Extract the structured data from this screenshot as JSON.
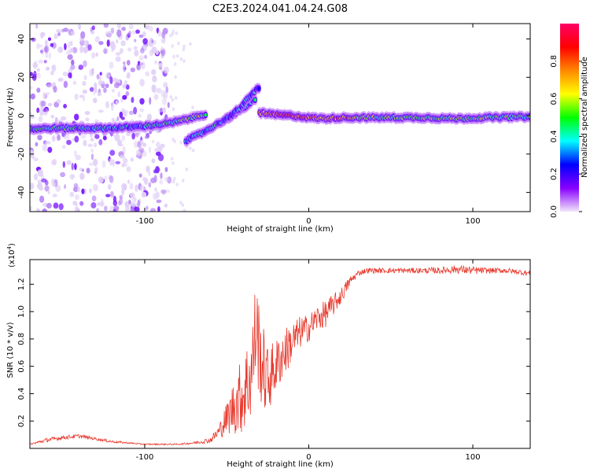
{
  "title": "C2E3.2024.041.04.24.G08",
  "chart_data": [
    {
      "type": "heatmap",
      "xlabel": "Height of straight line (km)",
      "ylabel": "Frequency (Hz)",
      "xlim": [
        -170,
        135
      ],
      "ylim": [
        -50,
        48
      ],
      "xticks": [
        -100,
        0,
        100
      ],
      "yticks": [
        -40,
        -20,
        0,
        20,
        40
      ],
      "colorbar": {
        "label": "Normalized spectral amplitude",
        "range": [
          0.0,
          1.0
        ],
        "ticks": [
          0.0,
          0.2,
          0.4,
          0.6,
          0.8
        ],
        "tick_labels": [
          "0.0",
          "0.2",
          "0.4",
          "0.6",
          "0.8"
        ],
        "colormap": [
          "#f2e6fa",
          "#8800ff",
          "#0000ff",
          "#00ffff",
          "#00ff00",
          "#ffff00",
          "#ff8800",
          "#ff0000",
          "#ff0066"
        ]
      },
      "noise_region_x": [
        -170,
        -85
      ],
      "traces": [
        {
          "x": [
            -170,
            -155,
            -140,
            -125,
            -110,
            -95,
            -85,
            -75,
            -62
          ],
          "y": [
            -7,
            -6.5,
            -6.5,
            -6.5,
            -6,
            -5,
            -4,
            -2,
            1
          ],
          "intensity": [
            0.35,
            0.45,
            0.4,
            0.35,
            0.35,
            0.4,
            0.45,
            0.5,
            0.55
          ]
        },
        {
          "x": [
            -75,
            -65,
            -55,
            -45,
            -38,
            -32
          ],
          "y": [
            -13,
            -9,
            -4,
            1,
            5,
            9
          ],
          "intensity": [
            0.35,
            0.35,
            0.35,
            0.35,
            0.35,
            0.35
          ]
        },
        {
          "x": [
            -52,
            -42,
            -35,
            -30
          ],
          "y": [
            -3,
            4,
            11,
            15
          ],
          "intensity": [
            0.3,
            0.3,
            0.3,
            0.3
          ]
        },
        {
          "x": [
            -30,
            -20,
            -10,
            0,
            10,
            20,
            30,
            50,
            70,
            90,
            110,
            135
          ],
          "y": [
            1.5,
            0.5,
            0,
            -1,
            -1.5,
            -1,
            -1,
            -1,
            -1,
            -1.5,
            -1,
            -0.5
          ],
          "intensity": [
            0.7,
            0.85,
            0.8,
            0.7,
            0.65,
            0.8,
            0.55,
            0.5,
            0.5,
            0.55,
            0.5,
            0.45
          ]
        }
      ]
    },
    {
      "type": "line",
      "xlabel": "Height of straight line (km)",
      "ylabel": "SNR (10 * v/v)",
      "scale_note": "(x10",
      "scale_exp": "4",
      "scale_close": ")",
      "xlim": [
        -170,
        135
      ],
      "ylim": [
        0,
        1.38
      ],
      "xticks": [
        -100,
        0,
        100
      ],
      "yticks": [
        0.2,
        0.4,
        0.6,
        0.8,
        1.0,
        1.2
      ],
      "ytick_labels": [
        "0.2",
        "0.4",
        "0.6",
        "0.8",
        "1.0",
        "1.2"
      ],
      "color": "#e83a2e",
      "series": [
        {
          "x": [
            -170,
            -160,
            -150,
            -140,
            -130,
            -120,
            -110,
            -100,
            -90,
            -80,
            -70,
            -60,
            -55,
            -50,
            -45,
            -40,
            -35,
            -32,
            -30,
            -27,
            -25,
            -20,
            -15,
            -10,
            -5,
            0,
            5,
            10,
            15,
            20,
            25,
            30,
            35,
            40,
            50,
            60,
            70,
            80,
            90,
            100,
            110,
            120,
            135
          ],
          "y": [
            0.03,
            0.06,
            0.08,
            0.09,
            0.07,
            0.05,
            0.04,
            0.03,
            0.03,
            0.03,
            0.04,
            0.06,
            0.12,
            0.22,
            0.32,
            0.4,
            0.55,
            0.9,
            0.7,
            0.55,
            0.5,
            0.6,
            0.7,
            0.78,
            0.85,
            0.88,
            0.95,
            0.98,
            1.05,
            1.12,
            1.22,
            1.28,
            1.3,
            1.3,
            1.3,
            1.3,
            1.3,
            1.3,
            1.31,
            1.3,
            1.3,
            1.3,
            1.28
          ],
          "noise": [
            0.005,
            0.015,
            0.015,
            0.015,
            0.01,
            0.01,
            0.005,
            0.005,
            0.005,
            0.005,
            0.01,
            0.02,
            0.05,
            0.12,
            0.22,
            0.3,
            0.35,
            0.4,
            0.35,
            0.3,
            0.25,
            0.2,
            0.18,
            0.15,
            0.12,
            0.1,
            0.1,
            0.1,
            0.08,
            0.06,
            0.04,
            0.02,
            0.02,
            0.02,
            0.02,
            0.02,
            0.02,
            0.025,
            0.03,
            0.03,
            0.02,
            0.02,
            0.02
          ]
        }
      ]
    }
  ]
}
